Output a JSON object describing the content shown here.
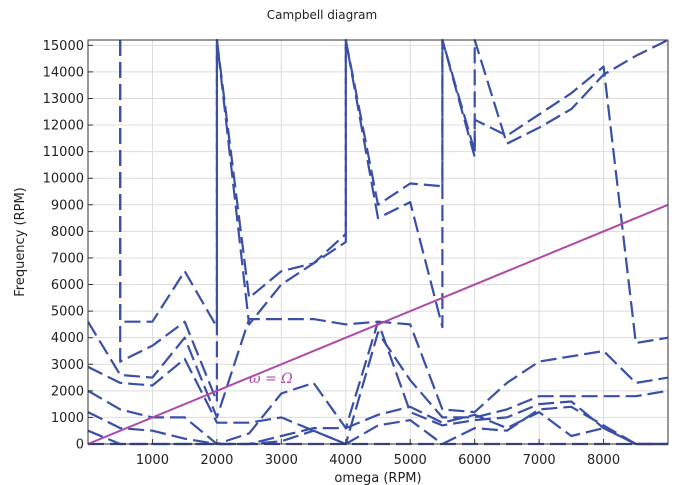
{
  "chart_data": {
    "type": "line",
    "title": "Campbell diagram",
    "xlabel": "omega (RPM)",
    "ylabel": "Frequency (RPM)",
    "xlim": [
      0,
      9000
    ],
    "ylim": [
      0,
      15200
    ],
    "xticks": [
      1000,
      2000,
      3000,
      4000,
      5000,
      6000,
      7000,
      8000
    ],
    "yticks": [
      0,
      1000,
      2000,
      3000,
      4000,
      5000,
      6000,
      7000,
      8000,
      9000,
      10000,
      11000,
      12000,
      13000,
      14000,
      15000
    ],
    "grid": true,
    "legend": "none",
    "colors": {
      "series": "#3a4fa8",
      "reference": "#b04aa8",
      "grid": "#dcdcdc",
      "axis": "#333333"
    },
    "series": [
      {
        "x": [
          0,
          500,
          1000,
          1500,
          2000,
          2500,
          3000,
          3500,
          4000,
          4500,
          5000,
          5500,
          6000,
          7000,
          8000,
          8500,
          9000
        ],
        "y": [
          0,
          0,
          0,
          0,
          0,
          0,
          0,
          0,
          0,
          0,
          0,
          0,
          0,
          0,
          0,
          0,
          0
        ]
      },
      {
        "x": [
          0,
          500,
          1000,
          1500,
          2000,
          2500,
          3000,
          3500,
          4000,
          4500,
          5000,
          5500,
          6000,
          6500,
          7000,
          7500,
          8000,
          8500,
          9000
        ],
        "y": [
          500,
          0,
          0,
          0,
          0,
          0,
          100,
          500,
          0,
          700,
          900,
          0,
          600,
          500,
          1300,
          1400,
          700,
          0,
          0
        ]
      },
      {
        "x": [
          0,
          500,
          1000,
          1500,
          2000,
          2500,
          3000,
          3500,
          4000,
          4500,
          5000,
          5500,
          6000,
          6500,
          7000,
          7500,
          8000,
          8500,
          9000
        ],
        "y": [
          1200,
          600,
          500,
          200,
          0,
          0,
          300,
          600,
          600,
          1100,
          1400,
          800,
          1100,
          600,
          1200,
          300,
          600,
          0,
          0
        ]
      },
      {
        "x": [
          0,
          500,
          1000,
          1500,
          2000,
          2500,
          3000,
          3500,
          4000,
          4500,
          5000,
          5500,
          6000,
          6500,
          7000,
          7500,
          8000,
          8500,
          9000
        ],
        "y": [
          2000,
          1300,
          1000,
          1000,
          0,
          400,
          1900,
          2300,
          600,
          4600,
          1200,
          700,
          900,
          1000,
          1500,
          1600,
          600,
          0,
          0
        ]
      },
      {
        "x": [
          0,
          500,
          1000,
          1500,
          1900,
          2000,
          2500,
          3000,
          3500,
          4000,
          4500,
          5000,
          5500,
          6000,
          6500,
          7000,
          7500,
          8000,
          8500,
          9000
        ],
        "y": [
          2900,
          2300,
          2200,
          3200,
          1300,
          800,
          800,
          1000,
          500,
          0,
          4200,
          2400,
          1000,
          1000,
          1300,
          1800,
          1800,
          1800,
          1800,
          2000
        ]
      },
      {
        "x": [
          0,
          500,
          1000,
          1500,
          2000,
          2500,
          3000,
          3500,
          4000,
          4500,
          5000,
          5500,
          6000,
          6500,
          7000,
          8000,
          8500,
          9000
        ],
        "y": [
          4600,
          2600,
          2500,
          4000,
          1000,
          4700,
          4700,
          4700,
          4500,
          4600,
          4500,
          1300,
          1200,
          2300,
          3100,
          3500,
          2300,
          2500
        ]
      },
      {
        "x": [
          500,
          500,
          1000,
          1500,
          2000,
          2000,
          2500,
          3000,
          3500,
          4000,
          4000,
          4500,
          5000,
          5500,
          5500,
          6000,
          6000,
          6500,
          7000,
          7500,
          8000,
          8500,
          9000
        ],
        "y": [
          15200,
          3100,
          3700,
          4600,
          1600,
          15200,
          4500,
          6000,
          6800,
          7600,
          15200,
          8500,
          9100,
          4400,
          15200,
          10800,
          15200,
          11300,
          11900,
          12600,
          13900,
          14600,
          15200
        ]
      },
      {
        "x": [
          500,
          500,
          1000,
          1500,
          2000,
          2000,
          2500,
          3000,
          3500,
          4000,
          4000,
          4500,
          5000,
          5500,
          5500,
          6000,
          6000,
          6500,
          7000,
          7500,
          8000,
          8500,
          9000
        ],
        "y": [
          15200,
          4600,
          4600,
          6500,
          4400,
          15200,
          5500,
          6500,
          6800,
          7900,
          15200,
          9000,
          9800,
          9700,
          15200,
          11000,
          12200,
          11600,
          12400,
          13200,
          14200,
          3800,
          4000
        ]
      }
    ],
    "reference_line": {
      "x": [
        0,
        9000
      ],
      "y": [
        0,
        9000
      ],
      "label": "ω = Ω"
    }
  }
}
